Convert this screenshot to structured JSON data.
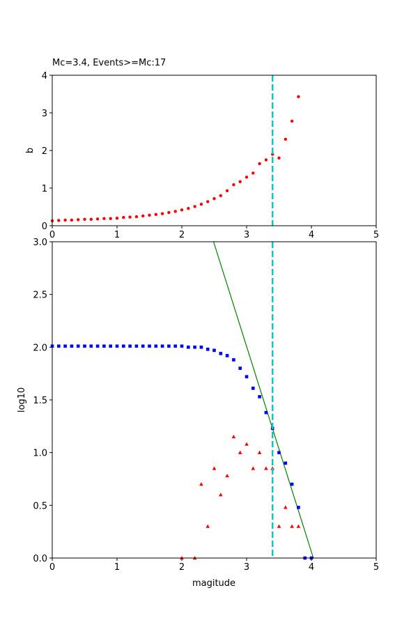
{
  "chart_data": [
    {
      "type": "scatter",
      "title": "Mc=3.4, Events>=Mc:17",
      "xlabel": "",
      "ylabel": "b",
      "xlim": [
        0,
        5
      ],
      "ylim": [
        0,
        4
      ],
      "xticks": [
        "0",
        "1",
        "2",
        "3",
        "4",
        "5"
      ],
      "yticks": [
        "0",
        "1",
        "2",
        "3",
        "4"
      ],
      "grid": false,
      "colors": {
        "b": "#ff0000",
        "mc": "#1fbfbf"
      },
      "series": [
        {
          "marker": "dot",
          "color": "#ff0000",
          "x": [
            0.0,
            0.1,
            0.2,
            0.3,
            0.4,
            0.5,
            0.6,
            0.7,
            0.8,
            0.9,
            1.0,
            1.1,
            1.2,
            1.3,
            1.4,
            1.5,
            1.6,
            1.7,
            1.8,
            1.9,
            2.0,
            2.1,
            2.2,
            2.3,
            2.4,
            2.5,
            2.6,
            2.7,
            2.8,
            2.9,
            3.0,
            3.1,
            3.2,
            3.3,
            3.4,
            3.5,
            3.6,
            3.7,
            3.8
          ],
          "y": [
            0.13,
            0.14,
            0.15,
            0.15,
            0.16,
            0.17,
            0.17,
            0.18,
            0.19,
            0.19,
            0.2,
            0.22,
            0.23,
            0.24,
            0.26,
            0.28,
            0.3,
            0.32,
            0.35,
            0.38,
            0.42,
            0.46,
            0.51,
            0.57,
            0.64,
            0.72,
            0.8,
            0.93,
            1.09,
            1.17,
            1.29,
            1.4,
            1.65,
            1.75,
            1.9,
            1.8,
            2.3,
            2.78,
            3.43
          ]
        }
      ],
      "vlines": [
        {
          "x": 3.4,
          "color": "#1fbfbf",
          "style": "dashed"
        }
      ]
    },
    {
      "type": "scatter",
      "title": "",
      "xlabel": "magitude",
      "ylabel": "log10",
      "xlim": [
        0,
        5
      ],
      "ylim": [
        0,
        3
      ],
      "xticks": [
        "0",
        "1",
        "2",
        "3",
        "4",
        "5"
      ],
      "yticks": [
        "0.0",
        "0.5",
        "1.0",
        "1.5",
        "2.0",
        "2.5",
        "3.0"
      ],
      "grid": false,
      "colors": {
        "cumulative": "#0000ff",
        "incremental": "#ff0000",
        "fit": "#008000",
        "mc": "#1fbfbf"
      },
      "series": [
        {
          "marker": "square",
          "color": "#0000ff",
          "x": [
            0.0,
            0.1,
            0.2,
            0.3,
            0.4,
            0.5,
            0.6,
            0.7,
            0.8,
            0.9,
            1.0,
            1.1,
            1.2,
            1.3,
            1.4,
            1.5,
            1.6,
            1.7,
            1.8,
            1.9,
            2.0,
            2.1,
            2.2,
            2.3,
            2.4,
            2.5,
            2.6,
            2.7,
            2.8,
            2.9,
            3.0,
            3.1,
            3.2,
            3.3,
            3.4,
            3.5,
            3.6,
            3.7,
            3.8,
            3.9,
            4.0
          ],
          "y": [
            2.01,
            2.01,
            2.01,
            2.01,
            2.01,
            2.01,
            2.01,
            2.01,
            2.01,
            2.01,
            2.01,
            2.01,
            2.01,
            2.01,
            2.01,
            2.01,
            2.01,
            2.01,
            2.01,
            2.01,
            2.01,
            2.0,
            2.0,
            2.0,
            1.98,
            1.97,
            1.94,
            1.92,
            1.88,
            1.8,
            1.72,
            1.61,
            1.53,
            1.38,
            1.23,
            1.0,
            0.9,
            0.7,
            0.48,
            0.0,
            0.0
          ]
        },
        {
          "marker": "triangle",
          "color": "#ff0000",
          "x": [
            2.0,
            2.2,
            2.3,
            2.4,
            2.5,
            2.6,
            2.7,
            2.8,
            2.9,
            3.0,
            3.1,
            3.2,
            3.3,
            3.4,
            3.5,
            3.6,
            3.7,
            3.8
          ],
          "y": [
            0.0,
            0.0,
            0.7,
            0.3,
            0.85,
            0.6,
            0.78,
            1.15,
            1.0,
            1.08,
            0.85,
            1.0,
            0.85,
            0.85,
            0.3,
            0.48,
            0.3,
            0.3
          ]
        }
      ],
      "fit_line": {
        "x": [
          2.49,
          4.03
        ],
        "y": [
          3.0,
          0.0
        ],
        "color": "#008000"
      },
      "vlines": [
        {
          "x": 3.4,
          "color": "#1fbfbf",
          "style": "dashed"
        }
      ]
    }
  ]
}
